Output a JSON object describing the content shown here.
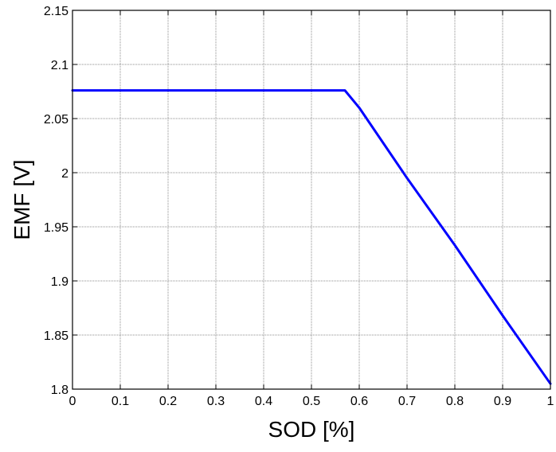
{
  "chart_data": {
    "type": "line",
    "xlabel": "SOD [%]",
    "ylabel": "EMF [V]",
    "xlim": [
      0,
      1
    ],
    "ylim": [
      1.8,
      2.15
    ],
    "x_ticks": [
      "0",
      "0.1",
      "0.2",
      "0.3",
      "0.4",
      "0.5",
      "0.6",
      "0.7",
      "0.8",
      "0.9",
      "1"
    ],
    "y_ticks": [
      "1.8",
      "1.85",
      "1.9",
      "1.95",
      "2",
      "2.05",
      "2.1",
      "2.15"
    ],
    "grid": true,
    "series": [
      {
        "color": "#0000ff",
        "x": [
          0,
          0.1,
          0.2,
          0.3,
          0.4,
          0.5,
          0.57,
          0.6,
          0.7,
          0.8,
          0.9,
          1.0
        ],
        "y": [
          2.076,
          2.076,
          2.076,
          2.076,
          2.076,
          2.076,
          2.076,
          2.06,
          1.995,
          1.933,
          1.868,
          1.805
        ]
      }
    ]
  }
}
